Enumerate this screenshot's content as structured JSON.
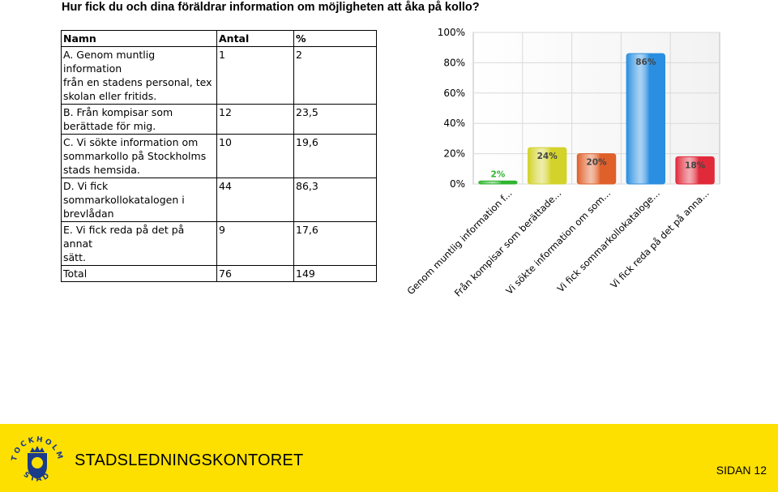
{
  "title": "Hur fick du och dina föräldrar information om möjligheten att åka på kollo?",
  "table": {
    "headers": [
      "Namn",
      "Antal",
      "%"
    ],
    "rows": [
      {
        "name": [
          "A. Genom muntlig information",
          "från en stadens personal, tex",
          "skolan eller fritids."
        ],
        "count": "1",
        "pct": "2"
      },
      {
        "name": [
          "B. Från kompisar som",
          "berättade för mig."
        ],
        "count": "12",
        "pct": "23,5"
      },
      {
        "name": [
          "C. Vi sökte information om",
          "sommarkollo på Stockholms",
          "stads hemsida."
        ],
        "count": "10",
        "pct": "19,6"
      },
      {
        "name": [
          "D. Vi fick",
          "sommarkollokatalogen i",
          "brevlådan"
        ],
        "count": "44",
        "pct": "86,3"
      },
      {
        "name": [
          "E. Vi fick reda på det på annat",
          "sätt."
        ],
        "count": "9",
        "pct": "17,6"
      }
    ],
    "total": {
      "label": "Total",
      "count": "76",
      "pct": "149"
    }
  },
  "chart_data": {
    "type": "bar",
    "categories": [
      "Genom muntlig information f...",
      "Från kompisar som berättade...",
      "Vi sökte information om som...",
      "Vi fick sommarkollokataloge...",
      "Vi fick reda på det på anna..."
    ],
    "values": [
      2,
      24,
      20,
      86,
      18
    ],
    "value_labels": [
      "2%",
      "24%",
      "20%",
      "86%",
      "18%"
    ],
    "colors": [
      "#2fb52f",
      "#d2d22a",
      "#e0602a",
      "#2a8fe0",
      "#e02a3a"
    ],
    "ylim": [
      0,
      100
    ],
    "yticks": [
      "0%",
      "20%",
      "40%",
      "60%",
      "80%",
      "100%"
    ],
    "title": "",
    "xlabel": "",
    "ylabel": ""
  },
  "footer": {
    "org": "STADSLEDNINGSKONTORET",
    "page": "SIDAN 12",
    "seal_text": "STOCKHOLMS STAD"
  }
}
